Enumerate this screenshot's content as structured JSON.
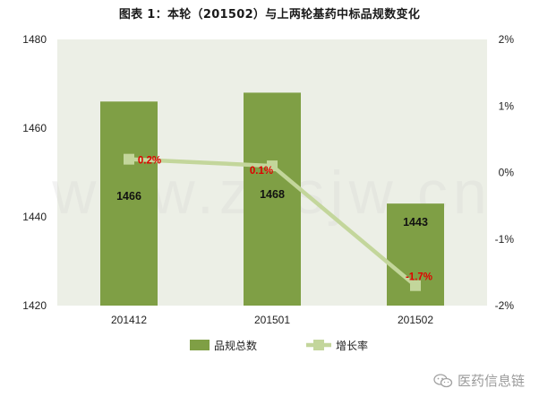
{
  "chart_data": {
    "type": "bar+line",
    "title": "图表 1：本轮（201502）与上两轮基药中标品规数变化",
    "categories": [
      "201412",
      "201501",
      "201502"
    ],
    "series": [
      {
        "name": "品规总数",
        "type": "bar",
        "axis": "left",
        "values": [
          1466,
          1468,
          1443
        ],
        "labels": [
          "1466",
          "1468",
          "1443"
        ],
        "color": "#7f9f45"
      },
      {
        "name": "增长率",
        "type": "line",
        "axis": "right",
        "values": [
          0.2,
          0.1,
          -1.7
        ],
        "labels": [
          "0.2%",
          "0.1%",
          "-1.7%"
        ],
        "color": "#c3d69b"
      }
    ],
    "left_axis": {
      "ylim": [
        1420,
        1480
      ],
      "ticks": [
        "1420",
        "1440",
        "1460",
        "1480"
      ],
      "tick_values": [
        1420,
        1440,
        1460,
        1480
      ]
    },
    "right_axis": {
      "ylim": [
        -2,
        2
      ],
      "ticks": [
        "-2%",
        "-1%",
        "0%",
        "1%",
        "2%"
      ],
      "tick_values": [
        -2,
        -1,
        0,
        1,
        2
      ]
    },
    "plot_background": "#ecefe6",
    "legend_position": "bottom"
  },
  "watermark": "www.zbsjw.cn",
  "brand": {
    "text": "医药信息链",
    "icon": "wechat-icon"
  }
}
